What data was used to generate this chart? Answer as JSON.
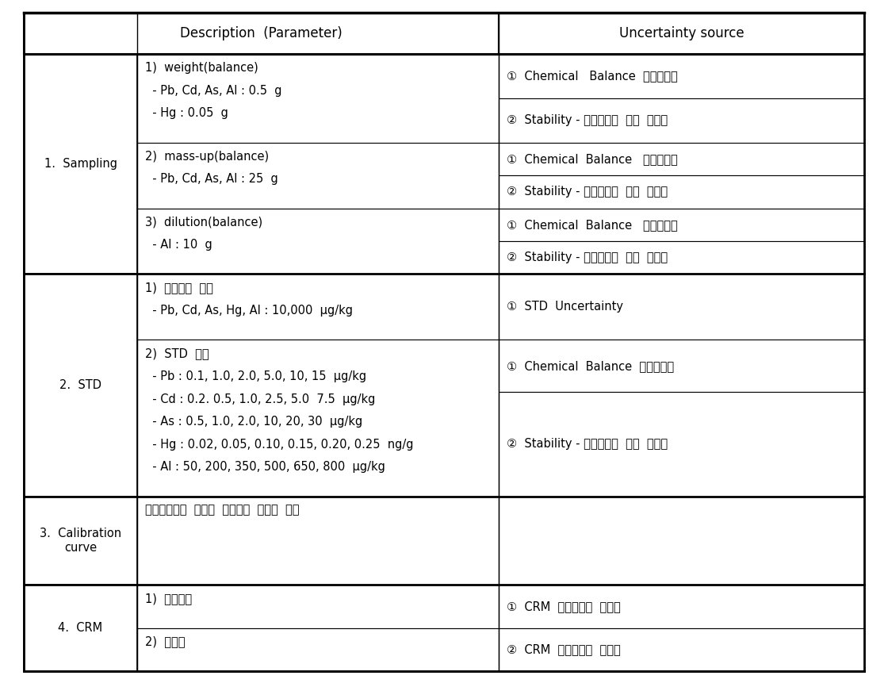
{
  "header_col1": "Description  (Parameter)",
  "header_col2": "Uncertainty source",
  "background_color": "#ffffff",
  "col_splits": [
    0.0,
    0.135,
    0.565,
    1.0
  ],
  "font_size_body": 10.5,
  "font_size_header": 12,
  "groups": [
    {
      "section": "1.  Sampling",
      "blocks": [
        {
          "desc": [
            "1)  weight(balance)",
            "  - Pb, Cd, As, Al : 0.5  g",
            "  - Hg : 0.05  g"
          ],
          "unc": [
            "①  Chemical   Balance  교정성적서",
            "②  Stability - 표준분동에  대한  반복성"
          ],
          "desc_line_count": 3,
          "unc_split": [
            1,
            1
          ]
        },
        {
          "desc": [
            "2)  mass-up(balance)",
            "  - Pb, Cd, As, Al : 25  g"
          ],
          "unc": [
            "①  Chemical  Balance   교정성적서",
            "②  Stability - 표준분동에  대한  반복성"
          ],
          "desc_line_count": 2,
          "unc_split": [
            1,
            1
          ]
        },
        {
          "desc": [
            "3)  dilution(balance)",
            "  - Al : 10  g"
          ],
          "unc": [
            "①  Chemical  Balance   교정성적서",
            "②  Stability - 표준분동에  대한  반복성"
          ],
          "desc_line_count": 2,
          "unc_split": [
            1,
            1
          ]
        }
      ]
    },
    {
      "section": "2.  STD",
      "blocks": [
        {
          "desc": [
            "1)  표준원액  농도",
            "  - Pb, Cd, As, Hg, Al : 10,000  μg/kg"
          ],
          "unc": [
            "①  STD  Uncertainty"
          ],
          "desc_line_count": 2,
          "unc_split": [
            1
          ]
        },
        {
          "desc": [
            "2)  STD  조제",
            "  - Pb : 0.1, 1.0, 2.0, 5.0, 10, 15  μg/kg",
            "  - Cd : 0.2. 0.5, 1.0, 2.5, 5.0  7.5  μg/kg",
            "  - As : 0.5, 1.0, 2.0, 10, 20, 30  μg/kg",
            "  - Hg : 0.02, 0.05, 0.10, 0.15, 0.20, 0.25  ng/g",
            "  - Al : 50, 200, 350, 500, 650, 800  μg/kg"
          ],
          "unc": [
            "①  Chemical  Balance  교정성적서",
            "②  Stability - 표준분동에  대한  반복성"
          ],
          "desc_line_count": 6,
          "unc_split": [
            2,
            4
          ]
        }
      ]
    },
    {
      "section": "3.  Calibration\ncurve",
      "blocks": [
        {
          "desc": [
            "최소자승법을  이용한  검량선의  불확도  계산"
          ],
          "unc": [
            ""
          ],
          "desc_line_count": 1,
          "unc_split": [
            1
          ]
        }
      ]
    },
    {
      "section": "4.  CRM",
      "blocks": [
        {
          "desc": [
            "1)  반복측정"
          ],
          "unc": [
            "①  CRM  시료분석의  반복성"
          ],
          "desc_line_count": 1,
          "unc_split": [
            1
          ]
        },
        {
          "desc": [
            "2)  회수율"
          ],
          "unc": [
            "②  CRM  시료분석의  회수율"
          ],
          "desc_line_count": 1,
          "unc_split": [
            1
          ]
        }
      ]
    }
  ]
}
